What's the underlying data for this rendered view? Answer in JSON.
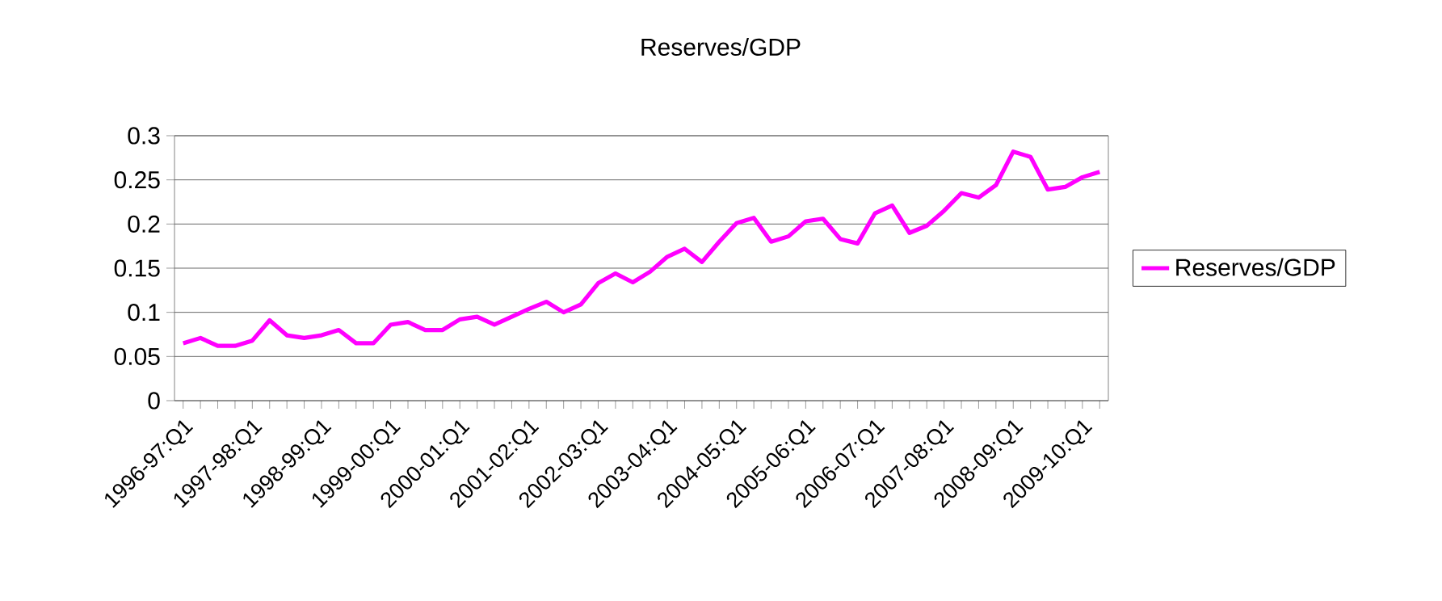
{
  "chart_data": {
    "type": "line",
    "title": "Reserves/GDP",
    "categories": [
      "1996-97:Q1",
      null,
      null,
      null,
      "1997-98:Q1",
      null,
      null,
      null,
      "1998-99:Q1",
      null,
      null,
      null,
      "1999-00:Q1",
      null,
      null,
      null,
      "2000-01:Q1",
      null,
      null,
      null,
      "2001-02:Q1",
      null,
      null,
      null,
      "2002-03:Q1",
      null,
      null,
      null,
      "2003-04:Q1",
      null,
      null,
      null,
      "2004-05:Q1",
      null,
      null,
      null,
      "2005-06:Q1",
      null,
      null,
      null,
      "2006-07:Q1",
      null,
      null,
      null,
      "2007-08:Q1",
      null,
      null,
      null,
      "2008-09:Q1",
      null,
      null,
      null,
      "2009-10:Q1",
      null
    ],
    "series": [
      {
        "name": "Reserves/GDP",
        "color": "#ff00ff",
        "values": [
          0.065,
          0.071,
          0.062,
          0.062,
          0.068,
          0.091,
          0.074,
          0.071,
          0.074,
          0.08,
          0.065,
          0.065,
          0.086,
          0.089,
          0.08,
          0.08,
          0.092,
          0.095,
          0.086,
          0.095,
          0.104,
          0.112,
          0.1,
          0.109,
          0.133,
          0.144,
          0.134,
          0.146,
          0.163,
          0.172,
          0.157,
          0.18,
          0.201,
          0.207,
          0.18,
          0.186,
          0.203,
          0.206,
          0.183,
          0.178,
          0.212,
          0.221,
          0.19,
          0.198,
          0.215,
          0.235,
          0.23,
          0.244,
          0.282,
          0.276,
          0.239,
          0.242,
          0.253,
          0.259
        ]
      }
    ],
    "ylim": [
      0,
      0.3
    ],
    "yticks": [
      0,
      0.05,
      0.1,
      0.15,
      0.2,
      0.25,
      0.3
    ],
    "grid": "y",
    "legend": "right",
    "marker": "none",
    "line_style": "solid"
  }
}
